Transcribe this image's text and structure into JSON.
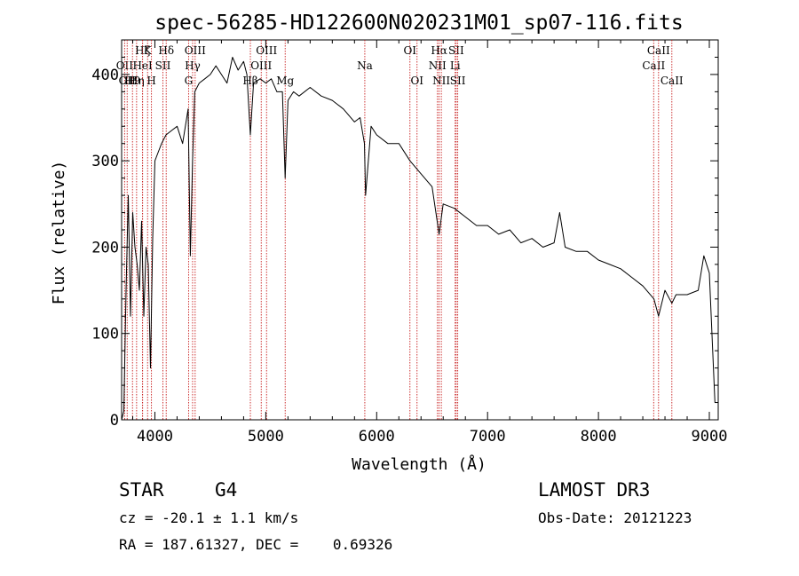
{
  "chart_data": {
    "type": "line",
    "title": "spec-56285-HD122600N020231M01_sp07-116.fits",
    "xlabel": "Wavelength (Å)",
    "ylabel": "Flux (relative)",
    "xlim": [
      3700,
      9080
    ],
    "ylim": [
      0,
      440
    ],
    "x_ticks": [
      4000,
      5000,
      6000,
      7000,
      8000,
      9000
    ],
    "y_ticks": [
      0,
      100,
      200,
      300,
      400
    ],
    "x_tick_labels": [
      "4000",
      "5000",
      "6000",
      "7000",
      "8000",
      "9000"
    ],
    "y_tick_labels": [
      "0",
      "100",
      "200",
      "300",
      "400"
    ],
    "grid": false,
    "series": [
      {
        "x": [
          3700,
          3720,
          3740,
          3760,
          3780,
          3800,
          3820,
          3840,
          3860,
          3880,
          3900,
          3920,
          3940,
          3960,
          3980,
          4000,
          4030,
          4060,
          4100,
          4150,
          4200,
          4250,
          4300,
          4320,
          4340,
          4360,
          4400,
          4450,
          4500,
          4550,
          4600,
          4650,
          4700,
          4750,
          4800,
          4830,
          4861,
          4890,
          4950,
          5000,
          5050,
          5100,
          5150,
          5175,
          5200,
          5250,
          5300,
          5400,
          5500,
          5600,
          5700,
          5800,
          5850,
          5890,
          5900,
          5950,
          6000,
          6100,
          6200,
          6300,
          6400,
          6500,
          6563,
          6600,
          6700,
          6800,
          6900,
          7000,
          7100,
          7200,
          7300,
          7400,
          7500,
          7600,
          7650,
          7700,
          7800,
          7900,
          8000,
          8100,
          8200,
          8300,
          8400,
          8500,
          8542,
          8600,
          8662,
          8700,
          8800,
          8900,
          8950,
          9000,
          9050
        ],
        "values": [
          0,
          10,
          150,
          260,
          120,
          240,
          200,
          180,
          150,
          230,
          120,
          200,
          180,
          60,
          210,
          300,
          310,
          320,
          330,
          335,
          340,
          320,
          360,
          190,
          300,
          380,
          390,
          395,
          400,
          410,
          400,
          390,
          420,
          405,
          415,
          400,
          330,
          390,
          395,
          390,
          395,
          380,
          380,
          280,
          370,
          380,
          375,
          385,
          375,
          370,
          360,
          345,
          350,
          320,
          260,
          340,
          330,
          320,
          320,
          300,
          285,
          270,
          215,
          250,
          245,
          235,
          225,
          225,
          215,
          220,
          205,
          210,
          200,
          205,
          240,
          200,
          195,
          195,
          185,
          180,
          175,
          165,
          155,
          140,
          120,
          150,
          135,
          145,
          145,
          150,
          190,
          170,
          20
        ]
      }
    ],
    "line_markers": [
      {
        "x": 3727,
        "label": "OII",
        "row": 2
      },
      {
        "x": 3750,
        "label": "OII",
        "row": 3
      },
      {
        "x": 3798,
        "label": "H9",
        "row": 3
      },
      {
        "x": 3835,
        "label": "Hη",
        "row": 3
      },
      {
        "x": 3889,
        "label": "Hζ",
        "row": 1
      },
      {
        "x": 3889,
        "label": "HeI",
        "row": 2
      },
      {
        "x": 3934,
        "label": "K",
        "row": 1
      },
      {
        "x": 3969,
        "label": "H",
        "row": 3
      },
      {
        "x": 4072,
        "label": "SII",
        "row": 2
      },
      {
        "x": 4102,
        "label": "Hδ",
        "row": 1
      },
      {
        "x": 4304,
        "label": "G",
        "row": 3
      },
      {
        "x": 4340,
        "label": "Hγ",
        "row": 2
      },
      {
        "x": 4363,
        "label": "OIII",
        "row": 1
      },
      {
        "x": 4861,
        "label": "Hβ",
        "row": 3
      },
      {
        "x": 4959,
        "label": "OIII",
        "row": 2
      },
      {
        "x": 5007,
        "label": "OIII",
        "row": 1
      },
      {
        "x": 5175,
        "label": "Mg",
        "row": 3
      },
      {
        "x": 5893,
        "label": "Na",
        "row": 2
      },
      {
        "x": 6300,
        "label": "OI",
        "row": 1
      },
      {
        "x": 6364,
        "label": "OI",
        "row": 3
      },
      {
        "x": 6548,
        "label": "NII",
        "row": 2
      },
      {
        "x": 6563,
        "label": "Hα",
        "row": 1
      },
      {
        "x": 6583,
        "label": "NII",
        "row": 3
      },
      {
        "x": 6708,
        "label": "Li",
        "row": 2
      },
      {
        "x": 6717,
        "label": "SII",
        "row": 1
      },
      {
        "x": 6731,
        "label": "SII",
        "row": 3
      },
      {
        "x": 8498,
        "label": "CaII",
        "row": 2
      },
      {
        "x": 8542,
        "label": "CaII",
        "row": 1
      },
      {
        "x": 8662,
        "label": "CaII",
        "row": 3
      }
    ]
  },
  "info": {
    "object_class": "STAR",
    "subclass": "G4",
    "survey": "LAMOST DR3",
    "redshift": "cz = -20.1 ± 1.1 km/s",
    "obs_date": "Obs-Date: 20121223",
    "coords": "RA = 187.61327, DEC =    0.69326"
  }
}
